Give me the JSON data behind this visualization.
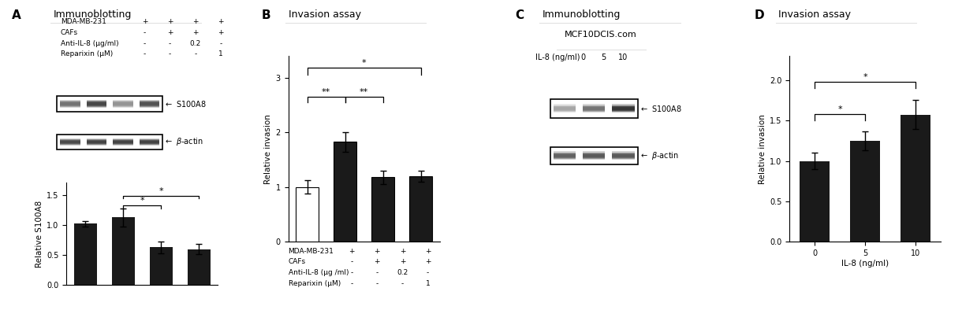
{
  "panel_A": {
    "label": "A",
    "title": "Immunoblotting",
    "bar_values": [
      1.02,
      1.13,
      0.63,
      0.6
    ],
    "bar_errors": [
      0.04,
      0.15,
      0.1,
      0.08
    ],
    "ylabel": "Relative S100A8",
    "ylim": [
      0,
      1.7
    ],
    "yticks": [
      0,
      0.5,
      1.0,
      1.5
    ],
    "bar_color": "#1a1a1a",
    "row_labels": [
      "MDA-MB-231",
      "CAFs",
      "Anti-IL-8 (μg/ml)",
      "Reparixin (μM)"
    ],
    "row_values": [
      [
        "+",
        "+",
        "+",
        "+"
      ],
      [
        "-",
        "+",
        "+",
        "+"
      ],
      [
        "-",
        "-",
        "0.2",
        "-"
      ],
      [
        "-",
        "-",
        "-",
        "1"
      ]
    ],
    "wb_s100a8_intensities": [
      0.45,
      0.28,
      0.58,
      0.32
    ],
    "wb_bactin_intensities": [
      0.28,
      0.25,
      0.25,
      0.25
    ]
  },
  "panel_B": {
    "label": "B",
    "title": "Invasion assay",
    "bar_values": [
      1.0,
      1.83,
      1.18,
      1.2
    ],
    "bar_errors": [
      0.12,
      0.18,
      0.12,
      0.1
    ],
    "ylabel": "Relative invasion",
    "ylim": [
      0,
      3.4
    ],
    "yticks": [
      0,
      1,
      2,
      3
    ],
    "bar_colors": [
      "white",
      "#1a1a1a",
      "#1a1a1a",
      "#1a1a1a"
    ],
    "row_labels": [
      "MDA-MB-231",
      "CAFs",
      "Anti-IL-8 (μg /ml)",
      "Reparixin (μM)"
    ],
    "row_values": [
      [
        "+",
        "+",
        "+",
        "+"
      ],
      [
        "-",
        "+",
        "+",
        "+"
      ],
      [
        "-",
        "-",
        "0.2",
        "-"
      ],
      [
        "-",
        "-",
        "-",
        "1"
      ]
    ]
  },
  "panel_C": {
    "label": "C",
    "title": "Immunoblotting",
    "cell_line": "MCF10DCIS.com",
    "il8_label": "IL-8 (ng/ml)",
    "il8_values": [
      "0",
      "5",
      "10"
    ],
    "wb_s100a8_intensities": [
      0.65,
      0.45,
      0.2
    ],
    "wb_bactin_intensities": [
      0.38,
      0.35,
      0.35
    ]
  },
  "panel_D": {
    "label": "D",
    "title": "Invasion assay",
    "bar_values": [
      1.0,
      1.25,
      1.57
    ],
    "bar_errors": [
      0.1,
      0.12,
      0.18
    ],
    "ylabel": "Relative invasion",
    "ylim": [
      0,
      2.3
    ],
    "yticks": [
      0,
      0.5,
      1.0,
      1.5,
      2.0
    ],
    "bar_color": "#1a1a1a",
    "xlabel": "IL-8 (ng/ml)",
    "x_labels": [
      "0",
      "5",
      "10"
    ]
  }
}
